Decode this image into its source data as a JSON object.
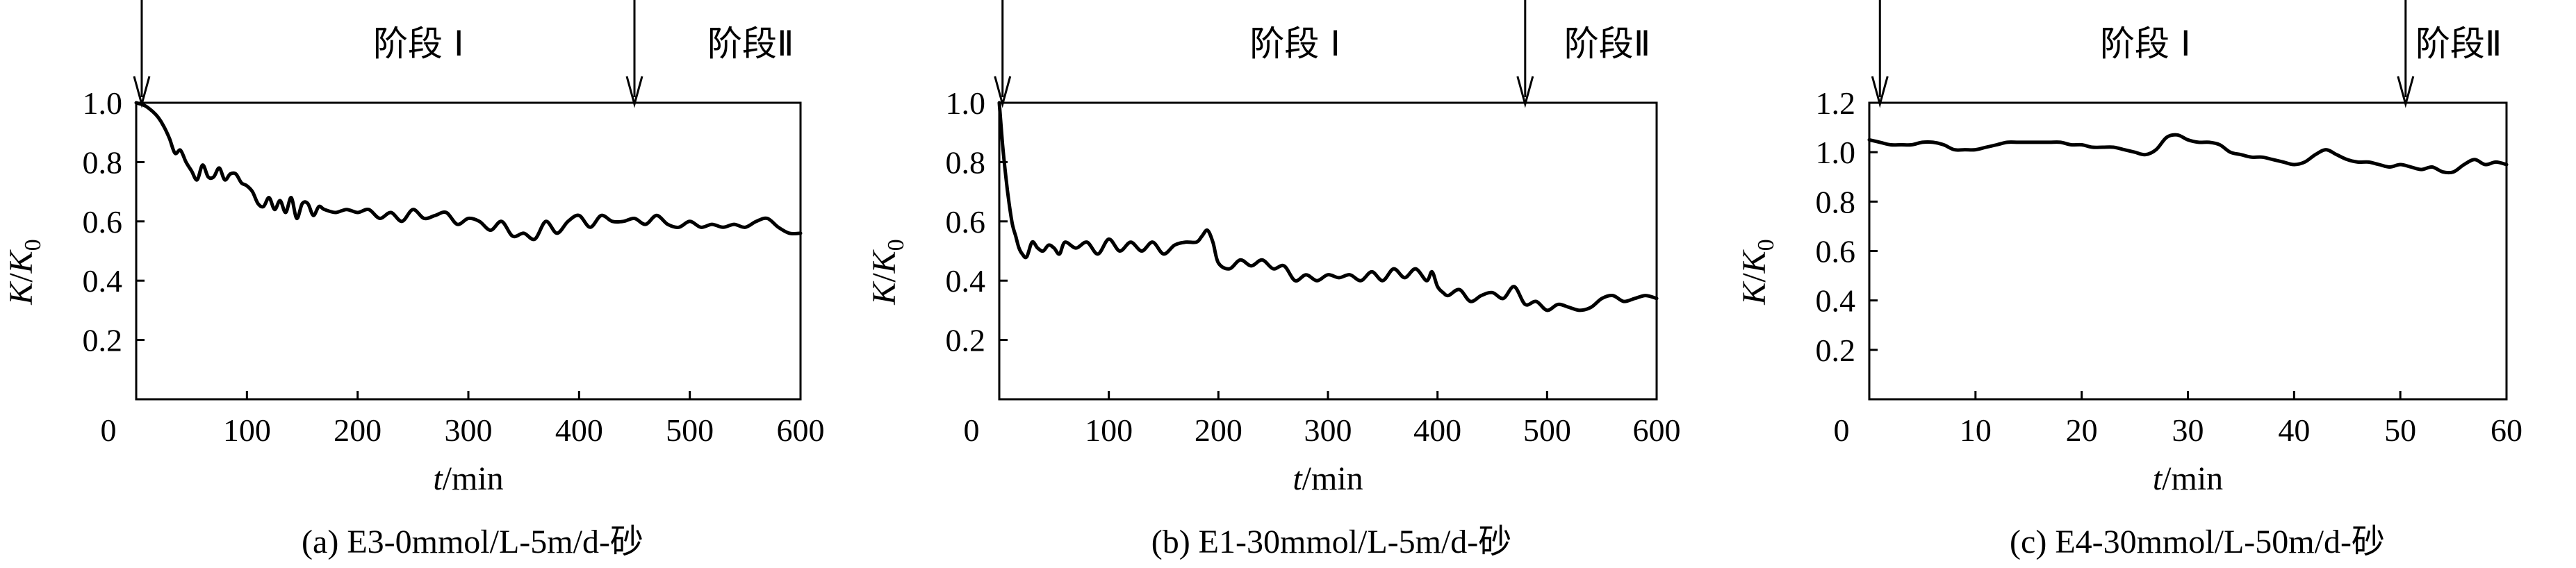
{
  "chart_data": [
    {
      "type": "line",
      "panel_label": "(a) E3-0mmol/L-5m/d-砂",
      "xlabel_var": "t",
      "xlabel_unit": "/min",
      "ylabel_main": "K",
      "ylabel_den": "K",
      "ylabel_sub": "0",
      "xlim": [
        0,
        600
      ],
      "ylim": [
        0,
        1.0
      ],
      "x_ticks": [
        100,
        200,
        300,
        400,
        500,
        600
      ],
      "x_tick_labels": [
        "100",
        "200",
        "300",
        "400",
        "500",
        "600"
      ],
      "y_ticks": [
        0.2,
        0.4,
        0.6,
        0.8,
        1.0
      ],
      "y_tick_labels": [
        "0.2",
        "0.4",
        "0.6",
        "0.8",
        "1.0"
      ],
      "origin_label": "0",
      "stage_markers": [
        {
          "x": 5,
          "label": ""
        },
        {
          "x": 450,
          "label": ""
        }
      ],
      "stage_labels": [
        {
          "x": 255,
          "text": "阶段 Ⅰ"
        },
        {
          "x": 555,
          "text": "阶段Ⅱ"
        }
      ],
      "series": [
        {
          "x": [
            0,
            8,
            15,
            20,
            25,
            30,
            35,
            40,
            45,
            50,
            55,
            60,
            65,
            70,
            75,
            80,
            85,
            90,
            95,
            100,
            105,
            110,
            115,
            120,
            125,
            130,
            135,
            140,
            145,
            150,
            155,
            160,
            165,
            170,
            180,
            190,
            200,
            210,
            220,
            230,
            240,
            250,
            260,
            270,
            280,
            290,
            300,
            310,
            320,
            330,
            340,
            350,
            360,
            370,
            380,
            390,
            400,
            410,
            420,
            430,
            440,
            450,
            460,
            470,
            480,
            490,
            500,
            510,
            520,
            530,
            540,
            550,
            560,
            570,
            580,
            590,
            600
          ],
          "y": [
            1.0,
            0.99,
            0.97,
            0.95,
            0.92,
            0.88,
            0.83,
            0.84,
            0.8,
            0.77,
            0.74,
            0.79,
            0.75,
            0.75,
            0.78,
            0.74,
            0.76,
            0.76,
            0.73,
            0.72,
            0.7,
            0.66,
            0.65,
            0.68,
            0.64,
            0.67,
            0.63,
            0.68,
            0.61,
            0.66,
            0.66,
            0.62,
            0.65,
            0.64,
            0.63,
            0.64,
            0.63,
            0.64,
            0.61,
            0.63,
            0.6,
            0.64,
            0.61,
            0.62,
            0.63,
            0.59,
            0.61,
            0.6,
            0.57,
            0.6,
            0.55,
            0.56,
            0.54,
            0.6,
            0.56,
            0.6,
            0.62,
            0.58,
            0.62,
            0.6,
            0.6,
            0.61,
            0.59,
            0.62,
            0.59,
            0.58,
            0.6,
            0.58,
            0.59,
            0.58,
            0.59,
            0.58,
            0.6,
            0.61,
            0.58,
            0.56,
            0.56
          ]
        }
      ]
    },
    {
      "type": "line",
      "panel_label": "(b) E1-30mmol/L-5m/d-砂",
      "xlabel_var": "t",
      "xlabel_unit": "/min",
      "ylabel_main": "K",
      "ylabel_den": "K",
      "ylabel_sub": "0",
      "xlim": [
        0,
        600
      ],
      "ylim": [
        0,
        1.0
      ],
      "x_ticks": [
        100,
        200,
        300,
        400,
        500,
        600
      ],
      "x_tick_labels": [
        "100",
        "200",
        "300",
        "400",
        "500",
        "600"
      ],
      "y_ticks": [
        0.2,
        0.4,
        0.6,
        0.8,
        1.0
      ],
      "y_tick_labels": [
        "0.2",
        "0.4",
        "0.6",
        "0.8",
        "1.0"
      ],
      "origin_label": "0",
      "stage_markers": [
        {
          "x": 3,
          "label": ""
        },
        {
          "x": 480,
          "label": ""
        }
      ],
      "stage_labels": [
        {
          "x": 270,
          "text": "阶段 Ⅰ"
        },
        {
          "x": 555,
          "text": "阶段Ⅱ"
        }
      ],
      "series": [
        {
          "x": [
            0,
            3,
            6,
            9,
            12,
            15,
            18,
            21,
            25,
            30,
            35,
            40,
            45,
            50,
            55,
            60,
            70,
            80,
            90,
            100,
            110,
            120,
            130,
            140,
            150,
            160,
            170,
            180,
            185,
            190,
            195,
            200,
            210,
            220,
            230,
            240,
            250,
            260,
            270,
            280,
            290,
            300,
            310,
            320,
            330,
            340,
            350,
            360,
            370,
            380,
            390,
            395,
            400,
            405,
            410,
            420,
            430,
            440,
            450,
            460,
            470,
            480,
            490,
            500,
            510,
            520,
            530,
            540,
            550,
            560,
            570,
            580,
            590,
            600
          ],
          "y": [
            1.0,
            0.86,
            0.75,
            0.66,
            0.59,
            0.55,
            0.51,
            0.49,
            0.48,
            0.53,
            0.51,
            0.5,
            0.52,
            0.51,
            0.49,
            0.53,
            0.51,
            0.53,
            0.49,
            0.54,
            0.5,
            0.53,
            0.5,
            0.53,
            0.49,
            0.52,
            0.53,
            0.53,
            0.55,
            0.57,
            0.53,
            0.46,
            0.44,
            0.47,
            0.45,
            0.47,
            0.44,
            0.45,
            0.4,
            0.42,
            0.4,
            0.42,
            0.41,
            0.42,
            0.4,
            0.43,
            0.4,
            0.44,
            0.41,
            0.44,
            0.4,
            0.43,
            0.38,
            0.36,
            0.35,
            0.37,
            0.33,
            0.35,
            0.36,
            0.34,
            0.38,
            0.32,
            0.33,
            0.3,
            0.32,
            0.31,
            0.3,
            0.31,
            0.34,
            0.35,
            0.33,
            0.34,
            0.35,
            0.34
          ]
        }
      ]
    },
    {
      "type": "line",
      "panel_label": "(c) E4-30mmol/L-50m/d-砂",
      "xlabel_var": "t",
      "xlabel_unit": "/min",
      "ylabel_main": "K",
      "ylabel_den": "K",
      "ylabel_sub": "0",
      "xlim": [
        0,
        60
      ],
      "ylim": [
        0,
        1.2
      ],
      "x_ticks": [
        10,
        20,
        30,
        40,
        50,
        60
      ],
      "x_tick_labels": [
        "10",
        "20",
        "30",
        "40",
        "50",
        "60"
      ],
      "y_ticks": [
        0.2,
        0.4,
        0.6,
        0.8,
        1.0,
        1.2
      ],
      "y_tick_labels": [
        "0.2",
        "0.4",
        "0.6",
        "0.8",
        "1.0",
        "1.2"
      ],
      "origin_label": "0",
      "stage_markers": [
        {
          "x": 1,
          "label": ""
        },
        {
          "x": 50.5,
          "label": ""
        }
      ],
      "stage_labels": [
        {
          "x": 26,
          "text": "阶段 Ⅰ"
        },
        {
          "x": 55.5,
          "text": "阶段Ⅱ"
        }
      ],
      "series": [
        {
          "x": [
            0,
            1,
            2,
            3,
            4,
            5,
            6,
            7,
            8,
            9,
            10,
            11,
            12,
            13,
            14,
            15,
            16,
            17,
            18,
            19,
            20,
            21,
            22,
            23,
            24,
            25,
            26,
            27,
            28,
            29,
            30,
            31,
            32,
            33,
            34,
            35,
            36,
            37,
            38,
            39,
            40,
            41,
            42,
            43,
            44,
            45,
            46,
            47,
            48,
            49,
            50,
            51,
            52,
            53,
            54,
            55,
            56,
            57,
            58,
            59,
            60
          ],
          "y": [
            1.05,
            1.04,
            1.03,
            1.03,
            1.03,
            1.04,
            1.04,
            1.03,
            1.01,
            1.01,
            1.01,
            1.02,
            1.03,
            1.04,
            1.04,
            1.04,
            1.04,
            1.04,
            1.04,
            1.03,
            1.03,
            1.02,
            1.02,
            1.02,
            1.01,
            1.0,
            0.99,
            1.01,
            1.06,
            1.07,
            1.05,
            1.04,
            1.04,
            1.03,
            1.0,
            0.99,
            0.98,
            0.98,
            0.97,
            0.96,
            0.95,
            0.96,
            0.99,
            1.01,
            0.99,
            0.97,
            0.96,
            0.96,
            0.95,
            0.94,
            0.95,
            0.94,
            0.93,
            0.94,
            0.92,
            0.92,
            0.95,
            0.97,
            0.95,
            0.96,
            0.95
          ]
        }
      ]
    }
  ]
}
